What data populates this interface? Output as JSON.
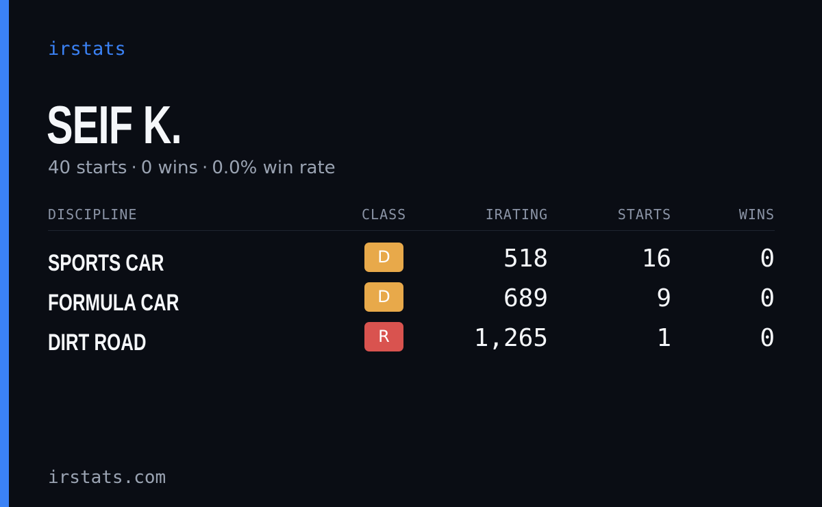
{
  "brand": "irstats",
  "driver": {
    "name": "SEIF K.",
    "starts_text": "40 starts",
    "wins_text": "0 wins",
    "win_rate_text": "0.0% win rate",
    "separator": "·"
  },
  "table": {
    "headers": {
      "discipline": "DISCIPLINE",
      "class": "CLASS",
      "irating": "IRATING",
      "starts": "STARTS",
      "wins": "WINS"
    },
    "rows": [
      {
        "discipline": "SPORTS CAR",
        "class": "D",
        "class_color": "#e8a94a",
        "irating": "518",
        "starts": "16",
        "wins": "0"
      },
      {
        "discipline": "FORMULA CAR",
        "class": "D",
        "class_color": "#e8a94a",
        "irating": "689",
        "starts": "9",
        "wins": "0"
      },
      {
        "discipline": "DIRT ROAD",
        "class": "R",
        "class_color": "#d9534f",
        "irating": "1,265",
        "starts": "1",
        "wins": "0"
      }
    ]
  },
  "footer": "irstats.com",
  "colors": {
    "accent": "#3b82f6",
    "background": "#0a0d14"
  }
}
